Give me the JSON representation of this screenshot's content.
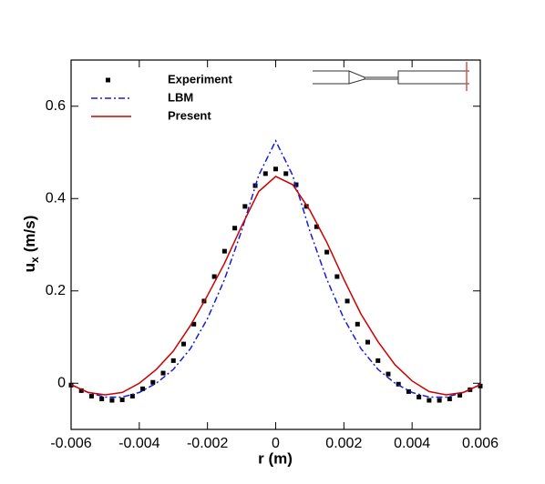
{
  "chart_data": {
    "type": "line",
    "xlabel": "r (m)",
    "ylabel": "u",
    "ylabel_sub": "x",
    "ylabel_unit": "(m/s)",
    "xlim": [
      -0.006,
      0.006
    ],
    "xticks": [
      -0.006,
      -0.004,
      -0.002,
      0,
      0.002,
      0.004,
      0.006
    ],
    "ylim": [
      -0.1,
      0.7
    ],
    "yticks": [
      0,
      0.2,
      0.4,
      0.6
    ],
    "legend": "upper left",
    "series": [
      {
        "name": "Experiment",
        "color": "#000000",
        "style": "marker",
        "x": [
          -0.006,
          -0.0057,
          -0.0054,
          -0.0051,
          -0.0048,
          -0.0045,
          -0.0042,
          -0.0039,
          -0.0036,
          -0.0033,
          -0.003,
          -0.0027,
          -0.0024,
          -0.0021,
          -0.0018,
          -0.0015,
          -0.0012,
          -0.0009,
          -0.0006,
          -0.0003,
          0,
          0.0003,
          0.0006,
          0.0009,
          0.0012,
          0.0015,
          0.0018,
          0.0021,
          0.0024,
          0.0027,
          0.003,
          0.0033,
          0.0036,
          0.0039,
          0.0042,
          0.0045,
          0.0048,
          0.0051,
          0.0054,
          0.0057,
          0.006
        ],
        "values": [
          -0.004,
          -0.016,
          -0.028,
          -0.034,
          -0.037,
          -0.036,
          -0.028,
          -0.012,
          0.002,
          0.022,
          0.049,
          0.085,
          0.128,
          0.178,
          0.231,
          0.286,
          0.336,
          0.383,
          0.428,
          0.454,
          0.464,
          0.454,
          0.43,
          0.383,
          0.339,
          0.284,
          0.231,
          0.178,
          0.128,
          0.089,
          0.049,
          0.02,
          -0.002,
          -0.018,
          -0.03,
          -0.037,
          -0.037,
          -0.034,
          -0.026,
          -0.014,
          -0.006
        ]
      },
      {
        "name": "LBM",
        "color": "#1a1adb",
        "style": "dashdot",
        "x": [
          -0.006,
          -0.0055,
          -0.005,
          -0.0045,
          -0.004,
          -0.0035,
          -0.003,
          -0.0025,
          -0.002,
          -0.0015,
          -0.001,
          -0.0005,
          0,
          0.0005,
          0.001,
          0.0015,
          0.002,
          0.0025,
          0.003,
          0.0035,
          0.004,
          0.0045,
          0.005,
          0.0055,
          0.006
        ],
        "values": [
          -0.003,
          -0.02,
          -0.03,
          -0.03,
          -0.02,
          0.0,
          0.03,
          0.075,
          0.14,
          0.225,
          0.33,
          0.45,
          0.525,
          0.45,
          0.33,
          0.225,
          0.14,
          0.075,
          0.03,
          0.0,
          -0.02,
          -0.03,
          -0.03,
          -0.02,
          -0.003
        ]
      },
      {
        "name": "Present",
        "color": "#cc0000",
        "style": "solid",
        "x": [
          -0.006,
          -0.0055,
          -0.005,
          -0.0045,
          -0.004,
          -0.0035,
          -0.003,
          -0.0025,
          -0.002,
          -0.0015,
          -0.001,
          -0.0005,
          0,
          0.0005,
          0.001,
          0.0015,
          0.002,
          0.0025,
          0.003,
          0.0035,
          0.004,
          0.0045,
          0.005,
          0.0055,
          0.006
        ],
        "values": [
          -0.003,
          -0.02,
          -0.025,
          -0.02,
          0.0,
          0.03,
          0.07,
          0.125,
          0.19,
          0.26,
          0.34,
          0.415,
          0.448,
          0.43,
          0.375,
          0.305,
          0.225,
          0.15,
          0.09,
          0.04,
          0.005,
          -0.018,
          -0.025,
          -0.02,
          -0.003
        ]
      }
    ]
  }
}
